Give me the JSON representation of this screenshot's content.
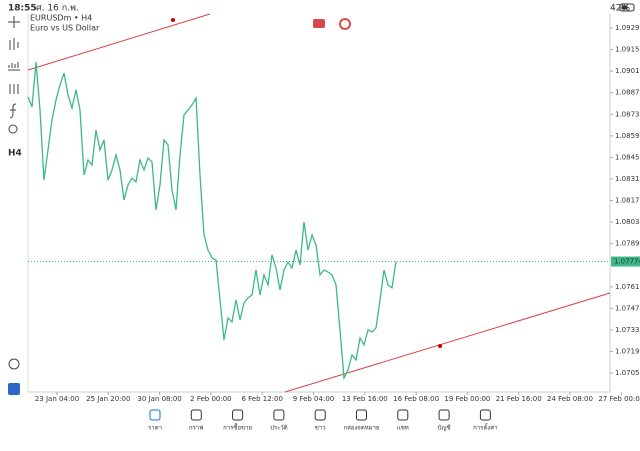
{
  "status_bar": {
    "time": "18:55",
    "date": "ศ. 16 ก.พ.",
    "battery": "42%"
  },
  "chart_data": {
    "type": "line",
    "title": "EURUSDm • H4",
    "subtitle": "Euro vs US Dollar",
    "x_labels": [
      "23 Jan 04:00",
      "25 Jan 20:00",
      "30 Jan 08:00",
      "2 Feb 00:00",
      "6 Feb 12:00",
      "9 Feb 04:00",
      "13 Feb 16:00",
      "16 Feb 08:00",
      "19 Feb 00:00",
      "21 Feb 16:00",
      "24 Feb 08:00",
      "27 Feb 00:00"
    ],
    "series": [
      {
        "name": "EURUSDm",
        "color": "#3cb98a",
        "values": [
          1.08842,
          1.08777,
          1.09069,
          1.08758,
          1.08303,
          1.08498,
          1.08693,
          1.08823,
          1.0892,
          1.08998,
          1.08855,
          1.08771,
          1.08888,
          1.08758,
          1.08336,
          1.08433,
          1.08401,
          1.08628,
          1.08498,
          1.08563,
          1.08303,
          1.08368,
          1.08466,
          1.08368,
          1.08174,
          1.08271,
          1.08316,
          1.08291,
          1.08433,
          1.08368,
          1.08446,
          1.0842,
          1.08109,
          1.08271,
          1.08563,
          1.08531,
          1.08239,
          1.08109,
          1.08466,
          1.08725,
          1.08758,
          1.0879,
          1.08836,
          1.08336,
          1.07947,
          1.07849,
          1.07797,
          1.07784,
          1.07525,
          1.07265,
          1.07408,
          1.07382,
          1.07525,
          1.07395,
          1.07505,
          1.07538,
          1.07557,
          1.07719,
          1.07557,
          1.07687,
          1.07622,
          1.07817,
          1.07732,
          1.0759,
          1.07719,
          1.07771,
          1.07732,
          1.07849,
          1.07752,
          1.08031,
          1.07849,
          1.07947,
          1.07882,
          1.07687,
          1.07719,
          1.07706,
          1.07687,
          1.07622,
          1.0733,
          1.07018,
          1.0707,
          1.07168,
          1.07135,
          1.07278,
          1.07233,
          1.0733,
          1.07317,
          1.07343,
          1.07525,
          1.07719,
          1.07622,
          1.07603,
          1.07774
        ]
      }
    ],
    "current_price": 1.07774,
    "ylim": [
      1.06927,
      1.09381
    ],
    "yticks": [
      {
        "value": 1.0929,
        "label": "1.09290"
      },
      {
        "value": 1.0915,
        "label": "1.09150"
      },
      {
        "value": 1.0901,
        "label": "1.09010"
      },
      {
        "value": 1.0887,
        "label": "1.08870"
      },
      {
        "value": 1.0873,
        "label": "1.08730"
      },
      {
        "value": 1.0859,
        "label": "1.08590"
      },
      {
        "value": 1.0845,
        "label": "1.08450"
      },
      {
        "value": 1.0831,
        "label": "1.08310"
      },
      {
        "value": 1.0817,
        "label": "1.08170"
      },
      {
        "value": 1.0803,
        "label": "1.08030"
      },
      {
        "value": 1.0789,
        "label": "1.07890"
      },
      {
        "value": 1.0761,
        "label": "1.07610"
      },
      {
        "value": 1.0747,
        "label": "1.07470"
      },
      {
        "value": 1.0733,
        "label": "1.07330"
      },
      {
        "value": 1.0719,
        "label": "1.07190"
      },
      {
        "value": 1.0705,
        "label": "1.07050"
      }
    ],
    "side_label": "H4"
  },
  "tabs": [
    "ราคา",
    "กราฟ",
    "การซื้อขาย",
    "ประวัติ",
    "ข่าว",
    "กล่องจดหมาย",
    "แชท",
    "บัญชี",
    "การตั้งค่า"
  ]
}
